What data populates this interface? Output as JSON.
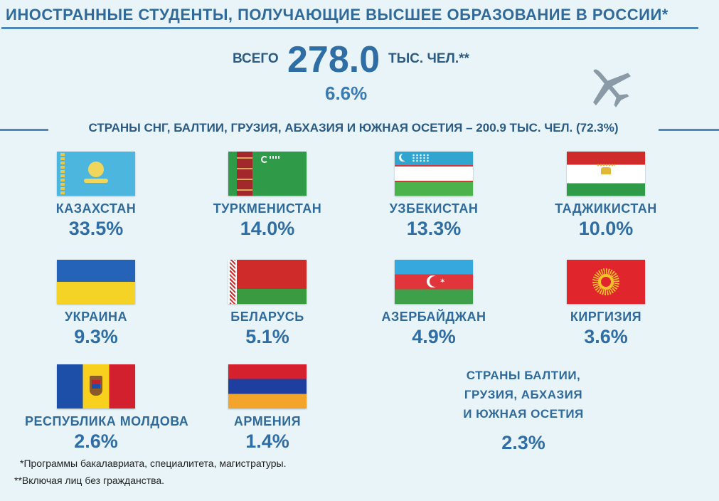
{
  "header": {
    "title": "ИНОСТРАННЫЕ СТУДЕНТЫ, ПОЛУЧАЮЩИЕ ВЫСШЕЕ ОБРАЗОВАНИЕ В РОССИИ*",
    "total_prefix": "ВСЕГО",
    "total_value": "278.0",
    "total_unit": "ТЫС. ЧЕЛ.**",
    "total_share": "6.6%"
  },
  "section": {
    "title": "СТРАНЫ СНГ, БАЛТИИ, ГРУЗИЯ, АБХАЗИЯ И ЮЖНАЯ ОСЕТИЯ – 200.9 ТЫС. ЧЕЛ. (72.3%)"
  },
  "countries": [
    {
      "name": "КАЗАХСТАН",
      "share": "33.5%",
      "flag": "kazakhstan-flag"
    },
    {
      "name": "ТУРКМЕНИСТАН",
      "share": "14.0%",
      "flag": "turkmenistan-flag"
    },
    {
      "name": "УЗБЕКИСТАН",
      "share": "13.3%",
      "flag": "uzbekistan-flag"
    },
    {
      "name": "ТАДЖИКИСТАН",
      "share": "10.0%",
      "flag": "tajikistan-flag"
    },
    {
      "name": "УКРАИНА",
      "share": "9.3%",
      "flag": "ukraine-flag"
    },
    {
      "name": "БЕЛАРУСЬ",
      "share": "5.1%",
      "flag": "belarus-flag"
    },
    {
      "name": "АЗЕРБАЙДЖАН",
      "share": "4.9%",
      "flag": "azerbaijan-flag"
    },
    {
      "name": "КИРГИЗИЯ",
      "share": "3.6%",
      "flag": "kyrgyzstan-flag"
    },
    {
      "name": "РЕСПУБЛИКА МОЛДОВА",
      "share": "2.6%",
      "flag": "moldova-flag"
    },
    {
      "name": "АРМЕНИЯ",
      "share": "1.4%",
      "flag": "armenia-flag"
    }
  ],
  "other": {
    "line1": "СТРАНЫ БАЛТИИ,",
    "line2": "ГРУЗИЯ, АБХАЗИЯ",
    "line3": "И ЮЖНАЯ ОСЕТИЯ",
    "share": "2.3%"
  },
  "footnotes": {
    "note1": "*Программы бакалавриата, специалитета, магистратуры.",
    "note2": "**Включая лиц без гражданства."
  },
  "colors": {
    "accent": "#2f6ea5",
    "background": "#e8f4f8",
    "line": "#4d88b8"
  },
  "icons": {
    "plane": "airplane-icon"
  }
}
